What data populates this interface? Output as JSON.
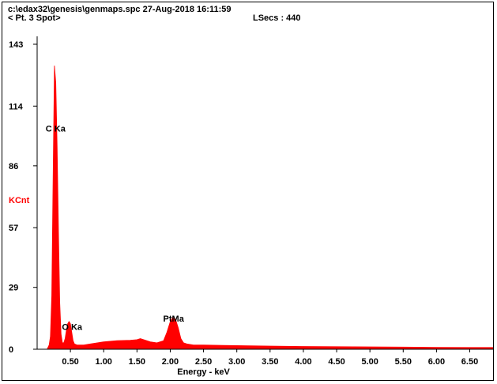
{
  "header": {
    "file_line": "c:\\edax32\\genesis\\genmaps.spc  27-Aug-2018 16:11:59",
    "spot_label": "< Pt.  3 Spot>",
    "lsecs_label": "LSecs :  440"
  },
  "chart_data": {
    "type": "area",
    "title": "",
    "xlabel": "Energy - keV",
    "ylabel": "KCnt",
    "xlim": [
      0.0,
      6.85
    ],
    "ylim": [
      0,
      143
    ],
    "x_ticks": [
      "0.50",
      "1.00",
      "1.50",
      "2.00",
      "2.50",
      "3.00",
      "3.50",
      "4.00",
      "4.50",
      "5.00",
      "5.50",
      "6.00",
      "6.50"
    ],
    "y_ticks": [
      "0",
      "29",
      "57",
      "86",
      "114",
      "143"
    ],
    "grid": false,
    "fill_color": "#ff0000",
    "axis_label_color": "#ff0000",
    "peak_labels": [
      {
        "text": "C Ka",
        "x": 0.277,
        "y": 102
      },
      {
        "text": "O Ka",
        "x": 0.525,
        "y": 9
      },
      {
        "text": "PtMa",
        "x": 2.05,
        "y": 13
      }
    ],
    "series": [
      {
        "x": [
          0.15,
          0.18,
          0.2,
          0.22,
          0.24,
          0.26,
          0.28,
          0.3,
          0.32,
          0.34,
          0.36,
          0.38,
          0.4,
          0.42,
          0.44,
          0.46,
          0.48,
          0.5,
          0.52,
          0.54,
          0.56,
          0.6,
          0.7,
          0.8,
          1.0,
          1.2,
          1.4,
          1.5,
          1.55,
          1.6,
          1.7,
          1.8,
          1.9,
          1.95,
          2.0,
          2.04,
          2.08,
          2.12,
          2.16,
          2.2,
          2.25,
          2.35,
          2.5,
          2.8,
          3.0,
          3.5,
          4.0,
          4.5,
          5.0,
          5.5,
          6.0,
          6.5,
          6.85
        ],
        "y": [
          0,
          2,
          6,
          25,
          80,
          133,
          125,
          95,
          55,
          22,
          7,
          3,
          3,
          5,
          9,
          12,
          13,
          12,
          8,
          4,
          2.5,
          2,
          2,
          2.5,
          3.5,
          4,
          4.2,
          4.5,
          5,
          4.5,
          3.5,
          3,
          4,
          8,
          13,
          15,
          14,
          10,
          5,
          3,
          2.5,
          2,
          2,
          1.8,
          1.7,
          1.5,
          1.3,
          1.2,
          1.1,
          1.0,
          0.9,
          0.8,
          0.8
        ]
      }
    ]
  }
}
